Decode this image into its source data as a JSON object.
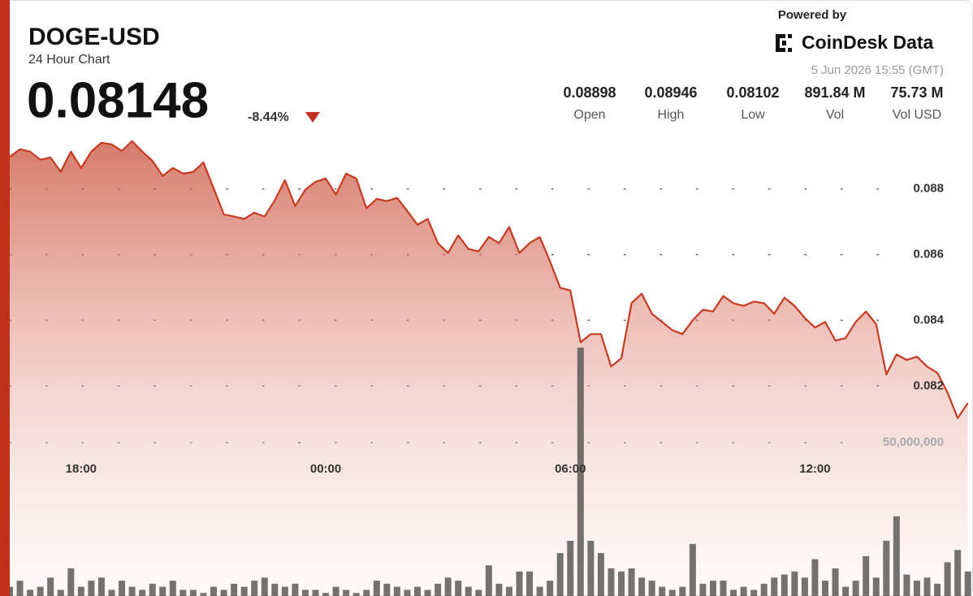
{
  "header": {
    "powered_by": "Powered by",
    "brand": "CoinDesk Data",
    "timestamp": "5 Jun 2026 15:55 (GMT)",
    "price": "0.08148",
    "change": "-8.44%",
    "stats": [
      {
        "value": "0.08898",
        "label": "Open"
      },
      {
        "value": "0.08946",
        "label": "High"
      },
      {
        "value": "0.08102",
        "label": "Low"
      },
      {
        "value": "891.84 M",
        "label": "Vol"
      },
      {
        "value": "75.73 M",
        "label": "Vol USD"
      }
    ]
  },
  "chart_data": {
    "type": "line",
    "title": "DOGE-USD",
    "subtitle": "24 Hour Chart",
    "categories": [
      null,
      null,
      null,
      null,
      null,
      null,
      null,
      "18:00",
      null,
      null,
      null,
      null,
      null,
      null,
      null,
      null,
      null,
      null,
      null,
      null,
      null,
      null,
      null,
      null,
      null,
      null,
      null,
      null,
      null,
      null,
      null,
      "00:00",
      null,
      null,
      null,
      null,
      null,
      null,
      null,
      null,
      null,
      null,
      null,
      null,
      null,
      null,
      null,
      null,
      null,
      null,
      null,
      null,
      null,
      null,
      null,
      "06:00",
      null,
      null,
      null,
      null,
      null,
      null,
      null,
      null,
      null,
      null,
      null,
      null,
      null,
      null,
      null,
      null,
      null,
      null,
      null,
      null,
      null,
      null,
      null,
      "12:00",
      null,
      null,
      null,
      null,
      null,
      null,
      null,
      null,
      null,
      null,
      null,
      null,
      null,
      null,
      null
    ],
    "series": [
      {
        "color": "#c73a22",
        "values": [
          0.08898,
          0.08921,
          0.08914,
          0.08889,
          0.08896,
          0.08852,
          0.08914,
          0.08864,
          0.08914,
          0.08941,
          0.08936,
          0.08916,
          0.08946,
          0.08914,
          0.08886,
          0.0884,
          0.08864,
          0.08847,
          0.08852,
          0.08881,
          0.08802,
          0.08723,
          0.08716,
          0.08709,
          0.08728,
          0.08716,
          0.08765,
          0.08827,
          0.08748,
          0.08798,
          0.08822,
          0.08832,
          0.08783,
          0.08847,
          0.08832,
          0.08741,
          0.0877,
          0.08763,
          0.08773,
          0.08733,
          0.08691,
          0.08709,
          0.08635,
          0.08605,
          0.08659,
          0.08617,
          0.0861,
          0.08654,
          0.08635,
          0.08684,
          0.08605,
          0.08635,
          0.08654,
          0.0858,
          0.08499,
          0.08491,
          0.08333,
          0.08358,
          0.08358,
          0.08259,
          0.08284,
          0.08452,
          0.08481,
          0.0842,
          0.08395,
          0.0837,
          0.08358,
          0.084,
          0.08432,
          0.08427,
          0.08474,
          0.08452,
          0.08444,
          0.08457,
          0.08452,
          0.0842,
          0.08469,
          0.08444,
          0.08407,
          0.08378,
          0.08395,
          0.08338,
          0.08346,
          0.08395,
          0.08427,
          0.08388,
          0.08235,
          0.08296,
          0.08279,
          0.08289,
          0.08259,
          0.0824,
          0.0818,
          0.08102,
          0.08148
        ]
      },
      {
        "color": "#5c5a57",
        "type": "bar",
        "axis": "y2",
        "values": [
          3000000,
          5000000,
          2000000,
          3000000,
          6000000,
          2000000,
          9000000,
          3000000,
          5000000,
          6000000,
          2000000,
          5000000,
          3000000,
          2000000,
          4000000,
          3000000,
          5000000,
          2000000,
          2000000,
          1000000,
          3000000,
          2000000,
          4000000,
          3000000,
          5000000,
          6000000,
          4000000,
          3000000,
          4000000,
          2000000,
          2000000,
          1000000,
          3000000,
          2000000,
          1000000,
          2000000,
          5000000,
          4000000,
          3000000,
          2000000,
          3000000,
          2000000,
          4000000,
          6000000,
          5000000,
          3000000,
          2000000,
          10000000,
          4000000,
          3000000,
          8000000,
          8000000,
          3000000,
          5000000,
          14000000,
          18000000,
          81000000,
          18000000,
          14000000,
          9000000,
          8000000,
          9000000,
          6000000,
          5000000,
          3000000,
          2000000,
          3000000,
          17000000,
          4000000,
          5000000,
          5000000,
          2000000,
          3000000,
          2000000,
          4000000,
          6000000,
          7000000,
          8000000,
          6000000,
          12000000,
          5000000,
          9000000,
          3000000,
          5000000,
          13000000,
          6000000,
          18000000,
          26000000,
          7000000,
          5000000,
          6000000,
          4000000,
          11000000,
          15000000,
          8000000
        ]
      }
    ],
    "ylim": [
      0.0756,
      0.0898
    ],
    "yticks": [
      0.082,
      0.084,
      0.086,
      0.088
    ],
    "y2lim": [
      0,
      152000000
    ],
    "y2ticks": [
      {
        "value": 50000000,
        "label": "50,000,000"
      }
    ],
    "grid": true
  }
}
